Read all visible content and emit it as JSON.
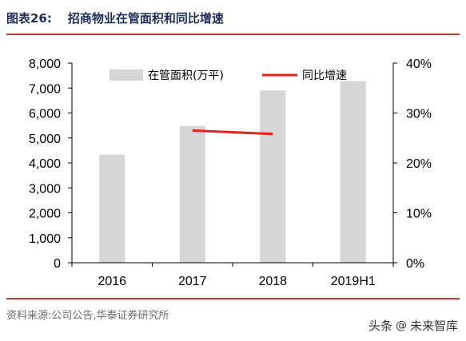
{
  "figure": {
    "number": "图表26:",
    "title": "招商物业在管面积和同比增速",
    "source": "资料来源:公司公告,华泰证券研究所"
  },
  "watermark": {
    "prefix": "头条",
    "sep": "@",
    "name": "未来智库"
  },
  "colors": {
    "bar": "#d6d6d6",
    "line": "#e2231a",
    "rule": "#c0392b",
    "axis": "#000000"
  },
  "chart_data": {
    "type": "bar",
    "categories": [
      "2016",
      "2017",
      "2018",
      "2019H1"
    ],
    "series": [
      {
        "name": "在管面积(万平)",
        "type": "bar",
        "axis": "left",
        "values": [
          4330,
          5480,
          6900,
          7280
        ]
      },
      {
        "name": "同比增速",
        "type": "line",
        "axis": "right",
        "values": [
          null,
          26.5,
          25.8,
          null
        ]
      }
    ],
    "yleft": {
      "min": 0,
      "max": 8000,
      "ticks": [
        0,
        1000,
        2000,
        3000,
        4000,
        5000,
        6000,
        7000,
        8000
      ],
      "tick_labels": [
        "0",
        "1,000",
        "2,000",
        "3,000",
        "4,000",
        "5,000",
        "6,000",
        "7,000",
        "8,000"
      ]
    },
    "yright": {
      "min": 0,
      "max": 40,
      "ticks": [
        0,
        10,
        20,
        30,
        40
      ],
      "tick_labels": [
        "0%",
        "10%",
        "20%",
        "30%",
        "40%"
      ]
    },
    "legend_position": "top-center",
    "grid": false
  }
}
